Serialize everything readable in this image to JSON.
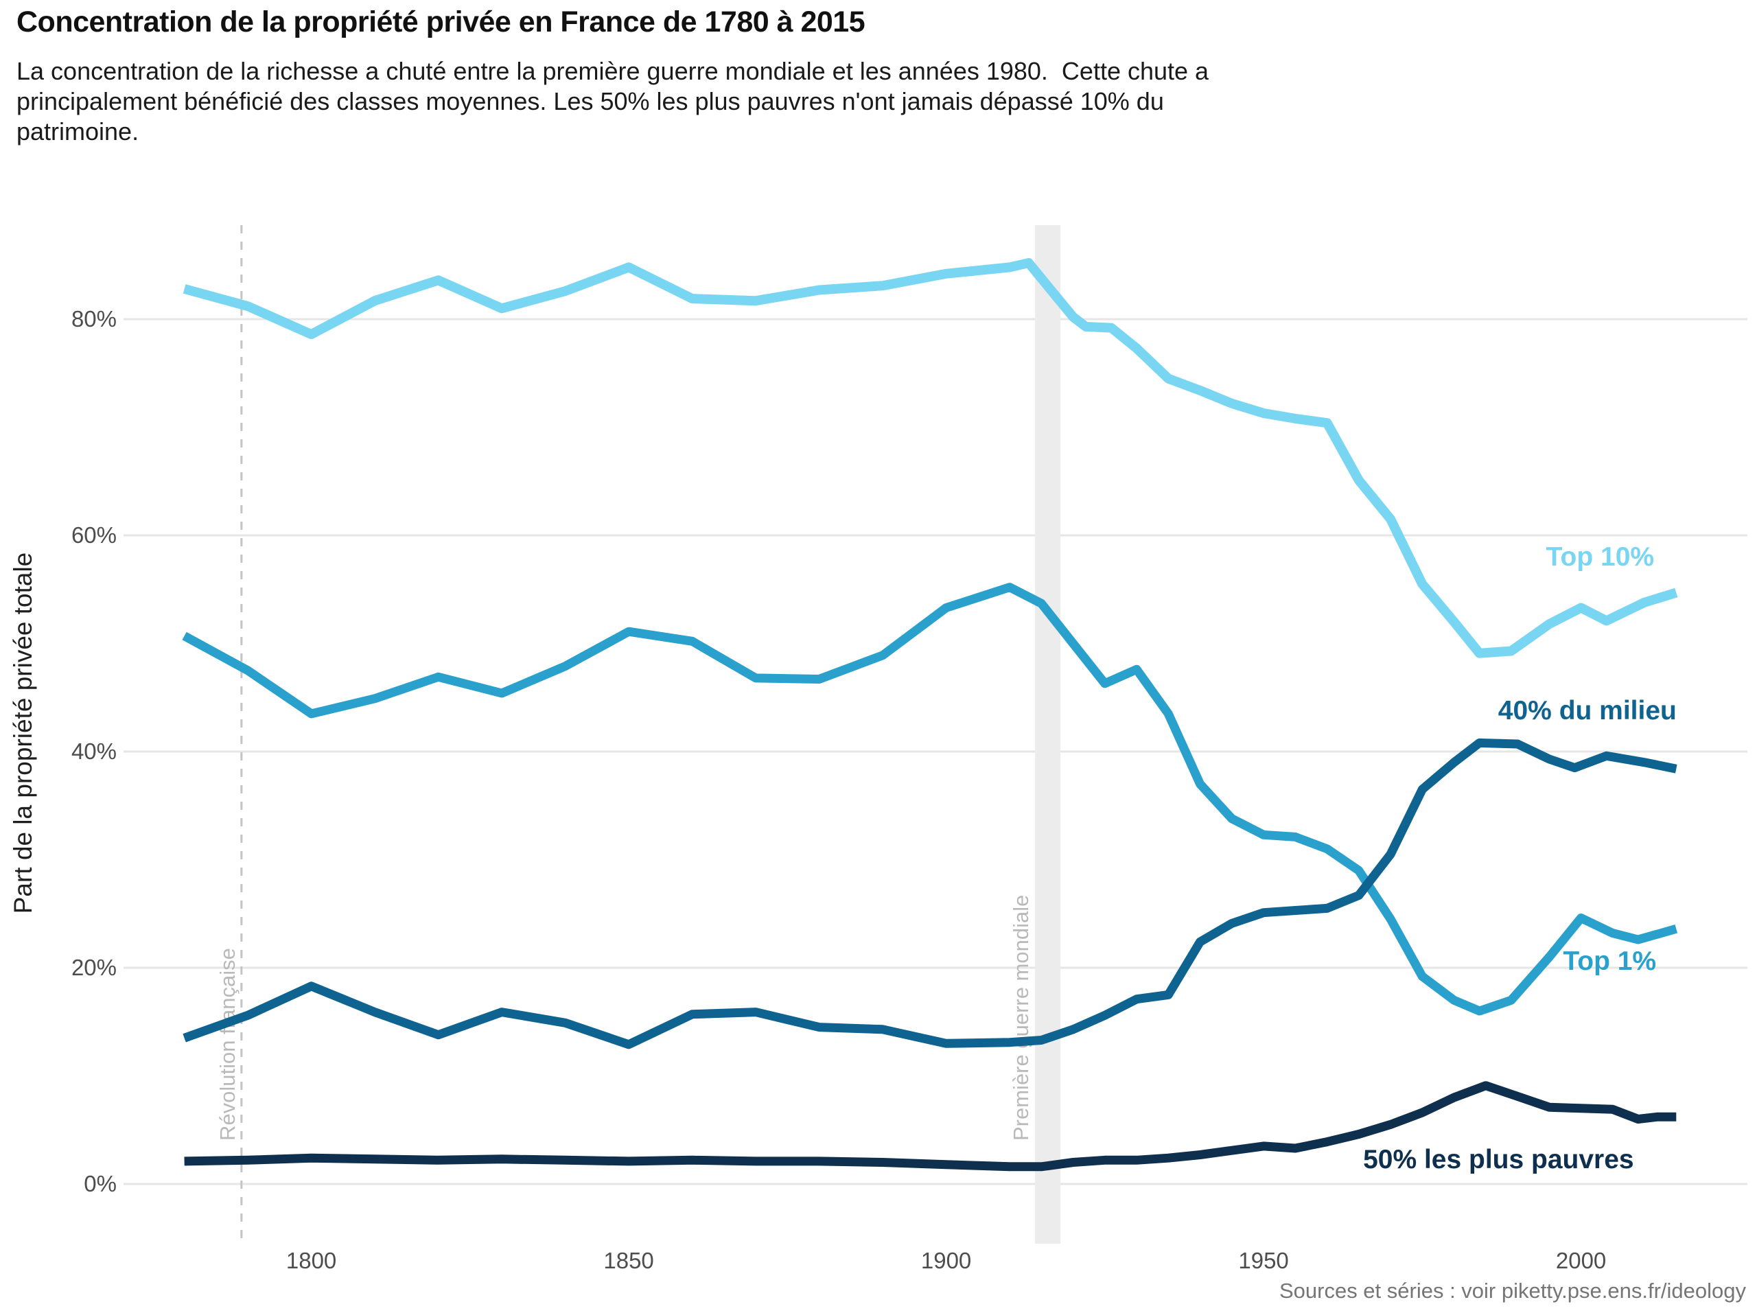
{
  "header": {
    "title": "Concentration de la propriété privée en France de 1780 à 2015",
    "subtitle_lines": [
      "La concentration de la richesse a chuté entre la première guerre mondiale et les années 1980.  Cette chute a",
      "principalement bénéficié des classes moyennes. Les 50% les plus pauvres n'ont jamais dépassé 10% du",
      "patrimoine."
    ]
  },
  "footer": {
    "source": "Sources et séries : voir piketty.pse.ens.fr/ideology"
  },
  "chart_data": {
    "type": "line",
    "title": "Concentration de la propriété privée en France de 1780 à 2015",
    "xlabel": "",
    "ylabel": "Part de la propriété privée totale",
    "xlim": [
      1780,
      2015
    ],
    "ylim": [
      0,
      88
    ],
    "grid": "horizontal",
    "legend": "direct-labels-on-chart",
    "x_ticks": [
      1800,
      1850,
      1900,
      1950,
      2000
    ],
    "y_ticks": [
      {
        "value": 0,
        "label": "0%"
      },
      {
        "value": 20,
        "label": "20%"
      },
      {
        "value": 40,
        "label": "40%"
      },
      {
        "value": 60,
        "label": "60%"
      },
      {
        "value": 80,
        "label": "80%"
      }
    ],
    "series": [
      {
        "id": "top10",
        "name": "Top 10%",
        "color": "#79d6f2",
        "stroke_width": 14,
        "label_anchor": {
          "year": 2003,
          "pct": 57.2
        },
        "points": [
          [
            1780,
            82.8
          ],
          [
            1790,
            81.2
          ],
          [
            1800,
            78.6
          ],
          [
            1810,
            81.7
          ],
          [
            1820,
            83.6
          ],
          [
            1830,
            81.0
          ],
          [
            1840,
            82.6
          ],
          [
            1850,
            84.8
          ],
          [
            1860,
            81.9
          ],
          [
            1870,
            81.7
          ],
          [
            1880,
            82.7
          ],
          [
            1890,
            83.1
          ],
          [
            1900,
            84.2
          ],
          [
            1910,
            84.8
          ],
          [
            1913,
            85.2
          ],
          [
            1920,
            80.2
          ],
          [
            1922,
            79.3
          ],
          [
            1926,
            79.2
          ],
          [
            1930,
            77.3
          ],
          [
            1935,
            74.5
          ],
          [
            1940,
            73.4
          ],
          [
            1945,
            72.2
          ],
          [
            1950,
            71.3
          ],
          [
            1955,
            70.8
          ],
          [
            1960,
            70.4
          ],
          [
            1965,
            65.1
          ],
          [
            1970,
            61.5
          ],
          [
            1975,
            55.5
          ],
          [
            1980,
            52.0
          ],
          [
            1984,
            49.1
          ],
          [
            1989,
            49.3
          ],
          [
            1995,
            51.8
          ],
          [
            2000,
            53.3
          ],
          [
            2004,
            52.1
          ],
          [
            2010,
            53.8
          ],
          [
            2015,
            54.7
          ]
        ]
      },
      {
        "id": "top1",
        "name": "Top 1%",
        "color": "#2aa0cd",
        "stroke_width": 13,
        "label_anchor": {
          "year": 2004.5,
          "pct": 19.8
        },
        "points": [
          [
            1780,
            50.7
          ],
          [
            1790,
            47.5
          ],
          [
            1800,
            43.5
          ],
          [
            1810,
            44.9
          ],
          [
            1820,
            46.9
          ],
          [
            1830,
            45.4
          ],
          [
            1840,
            47.9
          ],
          [
            1850,
            51.1
          ],
          [
            1860,
            50.2
          ],
          [
            1870,
            46.8
          ],
          [
            1880,
            46.7
          ],
          [
            1890,
            48.9
          ],
          [
            1900,
            53.3
          ],
          [
            1910,
            55.2
          ],
          [
            1915,
            53.7
          ],
          [
            1925,
            46.3
          ],
          [
            1930,
            47.6
          ],
          [
            1935,
            43.5
          ],
          [
            1940,
            37.0
          ],
          [
            1945,
            33.8
          ],
          [
            1950,
            32.3
          ],
          [
            1955,
            32.1
          ],
          [
            1960,
            31.0
          ],
          [
            1965,
            29.0
          ],
          [
            1970,
            24.5
          ],
          [
            1975,
            19.2
          ],
          [
            1980,
            17.0
          ],
          [
            1984,
            16.0
          ],
          [
            1989,
            17.0
          ],
          [
            1995,
            21.0
          ],
          [
            2000,
            24.6
          ],
          [
            2005,
            23.2
          ],
          [
            2009,
            22.6
          ],
          [
            2015,
            23.6
          ]
        ]
      },
      {
        "id": "mid40",
        "name": "40% du milieu",
        "color": "#0f6390",
        "stroke_width": 13,
        "label_anchor": {
          "year": 2001,
          "pct": 43.0
        },
        "points": [
          [
            1780,
            13.5
          ],
          [
            1790,
            15.6
          ],
          [
            1800,
            18.3
          ],
          [
            1810,
            15.9
          ],
          [
            1820,
            13.8
          ],
          [
            1830,
            15.9
          ],
          [
            1840,
            14.9
          ],
          [
            1850,
            12.9
          ],
          [
            1860,
            15.7
          ],
          [
            1870,
            15.9
          ],
          [
            1880,
            14.5
          ],
          [
            1890,
            14.3
          ],
          [
            1900,
            13.0
          ],
          [
            1910,
            13.1
          ],
          [
            1915,
            13.3
          ],
          [
            1920,
            14.3
          ],
          [
            1925,
            15.6
          ],
          [
            1930,
            17.1
          ],
          [
            1935,
            17.5
          ],
          [
            1940,
            22.4
          ],
          [
            1945,
            24.1
          ],
          [
            1950,
            25.1
          ],
          [
            1955,
            25.3
          ],
          [
            1960,
            25.5
          ],
          [
            1965,
            26.7
          ],
          [
            1970,
            30.5
          ],
          [
            1975,
            36.5
          ],
          [
            1980,
            39.0
          ],
          [
            1984,
            40.8
          ],
          [
            1990,
            40.7
          ],
          [
            1995,
            39.3
          ],
          [
            1999,
            38.5
          ],
          [
            2004,
            39.6
          ],
          [
            2010,
            39.0
          ],
          [
            2015,
            38.4
          ]
        ]
      },
      {
        "id": "bot50",
        "name": "50% les plus pauvres",
        "color": "#0e2f4e",
        "stroke_width": 13,
        "label_anchor": {
          "year": 1987,
          "pct": 1.45
        },
        "points": [
          [
            1780,
            2.1
          ],
          [
            1790,
            2.2
          ],
          [
            1800,
            2.4
          ],
          [
            1810,
            2.3
          ],
          [
            1820,
            2.2
          ],
          [
            1830,
            2.3
          ],
          [
            1840,
            2.2
          ],
          [
            1850,
            2.1
          ],
          [
            1860,
            2.2
          ],
          [
            1870,
            2.1
          ],
          [
            1880,
            2.1
          ],
          [
            1890,
            2.0
          ],
          [
            1900,
            1.8
          ],
          [
            1910,
            1.6
          ],
          [
            1915,
            1.6
          ],
          [
            1920,
            2.0
          ],
          [
            1925,
            2.2
          ],
          [
            1930,
            2.2
          ],
          [
            1935,
            2.4
          ],
          [
            1940,
            2.7
          ],
          [
            1945,
            3.1
          ],
          [
            1950,
            3.5
          ],
          [
            1955,
            3.3
          ],
          [
            1960,
            3.9
          ],
          [
            1965,
            4.6
          ],
          [
            1970,
            5.5
          ],
          [
            1975,
            6.6
          ],
          [
            1980,
            8.0
          ],
          [
            1985,
            9.1
          ],
          [
            1990,
            8.1
          ],
          [
            1995,
            7.1
          ],
          [
            2000,
            7.0
          ],
          [
            2005,
            6.9
          ],
          [
            2009,
            6.0
          ],
          [
            2012,
            6.2
          ],
          [
            2015,
            6.2
          ]
        ]
      }
    ],
    "annotations": [
      {
        "id": "revolution",
        "type": "vline-dashed",
        "year": 1789,
        "label": "Révolution française",
        "color": "#c4c4c4",
        "label_color": "#b9b9b9"
      },
      {
        "id": "wwi",
        "type": "band",
        "year_start": 1914,
        "year_end": 1918,
        "label": "Première guerre mondiale",
        "color": "#ececec",
        "label_color": "#b9b9b9"
      }
    ],
    "colors": {
      "grid": "#e6e6e6",
      "tick_text": "#4d4d4d",
      "background": "#ffffff"
    }
  }
}
